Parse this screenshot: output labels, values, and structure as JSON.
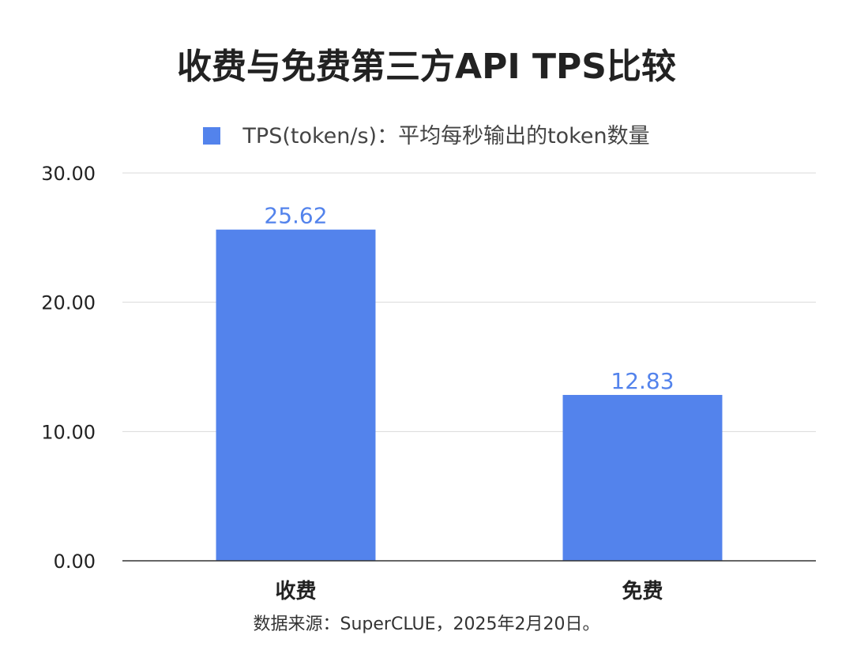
{
  "chart_data": {
    "type": "bar",
    "title": "收费与免费第三方API TPS比较",
    "categories": [
      "收费",
      "免费"
    ],
    "series": [
      {
        "name": "TPS(token/s)：平均每秒输出的token数量",
        "values": [
          25.62,
          12.83
        ]
      }
    ],
    "data_labels": [
      "25.62",
      "12.83"
    ],
    "y_ticks": [
      "0.00",
      "10.00",
      "20.00",
      "30.00"
    ],
    "ylim": [
      0,
      30
    ],
    "grid": true,
    "legend_position": "top",
    "bar_color": "#5383ec",
    "source_note": "数据来源：SuperCLUE，2025年2月20日。"
  }
}
